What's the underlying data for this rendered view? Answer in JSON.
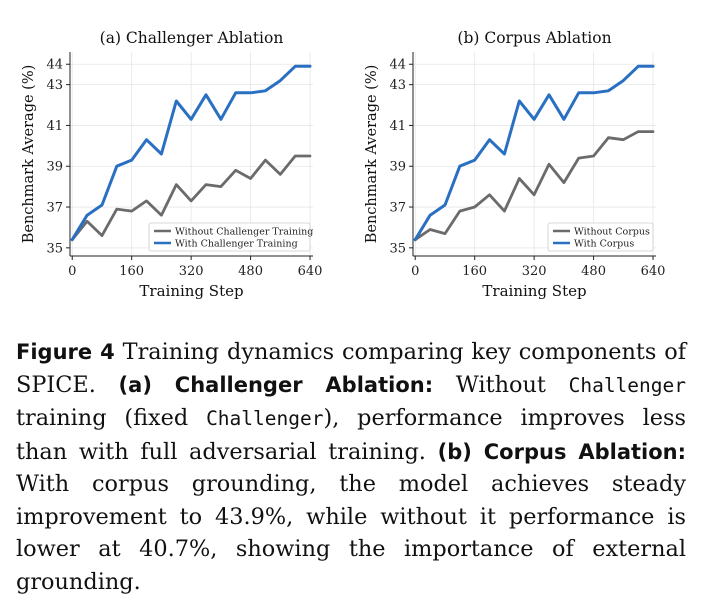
{
  "chart_data": [
    {
      "type": "line",
      "title": "(a) Challenger Ablation",
      "xlabel": "Training Step",
      "ylabel": "Benchmark Average (%)",
      "xlim": [
        -6,
        648
      ],
      "ylim": [
        34.6,
        44.6
      ],
      "xticks": [
        0,
        160,
        320,
        480,
        640
      ],
      "yticks": [
        35,
        37,
        39,
        41,
        43,
        44
      ],
      "grid": true,
      "legend_position": "lower-right",
      "x": [
        0,
        40,
        80,
        120,
        160,
        200,
        240,
        280,
        320,
        360,
        400,
        440,
        480,
        520,
        560,
        600,
        640
      ],
      "series": [
        {
          "name": "Without Challenger Training",
          "color": "#6b6b6b",
          "values": [
            35.4,
            36.3,
            35.6,
            36.9,
            36.8,
            37.3,
            36.6,
            38.1,
            37.3,
            38.1,
            38.0,
            38.8,
            38.4,
            39.3,
            38.6,
            39.5,
            39.5
          ]
        },
        {
          "name": "With Challenger Training",
          "color": "#2a70c2",
          "values": [
            35.4,
            36.6,
            37.1,
            39.0,
            39.3,
            40.3,
            39.6,
            42.2,
            41.3,
            42.5,
            41.3,
            42.6,
            42.6,
            42.7,
            43.2,
            43.9,
            43.9
          ]
        }
      ]
    },
    {
      "type": "line",
      "title": "(b) Corpus Ablation",
      "xlabel": "Training Step",
      "ylabel": "Benchmark Average (%)",
      "xlim": [
        -6,
        648
      ],
      "ylim": [
        34.6,
        44.6
      ],
      "xticks": [
        0,
        160,
        320,
        480,
        640
      ],
      "yticks": [
        35,
        37,
        39,
        41,
        43,
        44
      ],
      "grid": true,
      "legend_position": "lower-right",
      "x": [
        0,
        40,
        80,
        120,
        160,
        200,
        240,
        280,
        320,
        360,
        400,
        440,
        480,
        520,
        560,
        600,
        640
      ],
      "series": [
        {
          "name": "Without Corpus",
          "color": "#6b6b6b",
          "values": [
            35.4,
            35.9,
            35.7,
            36.8,
            37.0,
            37.6,
            36.8,
            38.4,
            37.6,
            39.1,
            38.2,
            39.4,
            39.5,
            40.4,
            40.3,
            40.7,
            40.7
          ]
        },
        {
          "name": "With Corpus",
          "color": "#2a70c2",
          "values": [
            35.4,
            36.6,
            37.1,
            39.0,
            39.3,
            40.3,
            39.6,
            42.2,
            41.3,
            42.5,
            41.3,
            42.6,
            42.6,
            42.7,
            43.2,
            43.9,
            43.9
          ]
        }
      ]
    }
  ],
  "caption": {
    "label": "Figure 4",
    "text_1": " Training dynamics comparing key components of SPICE. ",
    "part_a_label": "(a) Challenger Ablation:",
    "text_2": " Without ",
    "mono_1": "Challenger",
    "text_3": " training (fixed ",
    "mono_2": "Challenger",
    "text_4": "), performance improves less than with full adversarial training. ",
    "part_b_label": "(b) Corpus Ablation:",
    "text_5": " With corpus grounding, the model achieves steady improvement to 43.9%, while without it performance is lower at 40.7%, showing the importance of external grounding."
  }
}
